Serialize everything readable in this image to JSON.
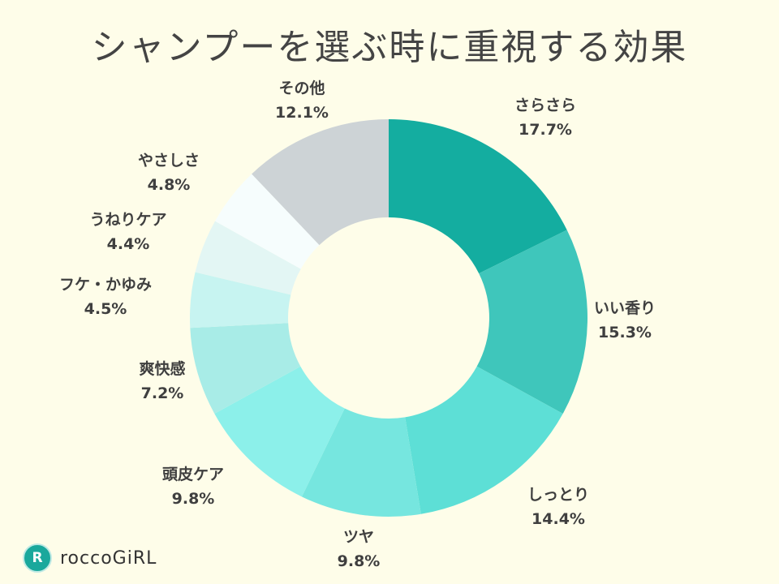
{
  "chart_data": {
    "type": "pie",
    "donut": true,
    "title": "シャンプーを選ぶ時に重視する効果",
    "unit": "%",
    "slices": [
      {
        "label": "さらさら",
        "value": 17.7,
        "value_label": "17.7%",
        "color": "#14ada0"
      },
      {
        "label": "いい香り",
        "value": 15.3,
        "value_label": "15.3%",
        "color": "#3fc6bb"
      },
      {
        "label": "しっとり",
        "value": 14.4,
        "value_label": "14.4%",
        "color": "#5ddfd6"
      },
      {
        "label": "ツヤ",
        "value": 9.8,
        "value_label": "9.8%",
        "color": "#76e6df"
      },
      {
        "label": "頭皮ケア",
        "value": 9.8,
        "value_label": "9.8%",
        "color": "#8cf0ea"
      },
      {
        "label": "爽快感",
        "value": 7.2,
        "value_label": "7.2%",
        "color": "#a8ece7"
      },
      {
        "label": "フケ・かゆみ",
        "value": 4.5,
        "value_label": "4.5%",
        "color": "#c7f4f1"
      },
      {
        "label": "うねりケア",
        "value": 4.4,
        "value_label": "4.4%",
        "color": "#e3f6f4"
      },
      {
        "label": "やさしさ",
        "value": 4.8,
        "value_label": "4.8%",
        "color": "#f6fdfd"
      },
      {
        "label": "その他",
        "value": 12.1,
        "value_label": "12.1%",
        "color": "#cdd3d6"
      }
    ]
  },
  "logo": {
    "mark": "R",
    "text": "roccoGiRL"
  },
  "background": "#fefde9"
}
